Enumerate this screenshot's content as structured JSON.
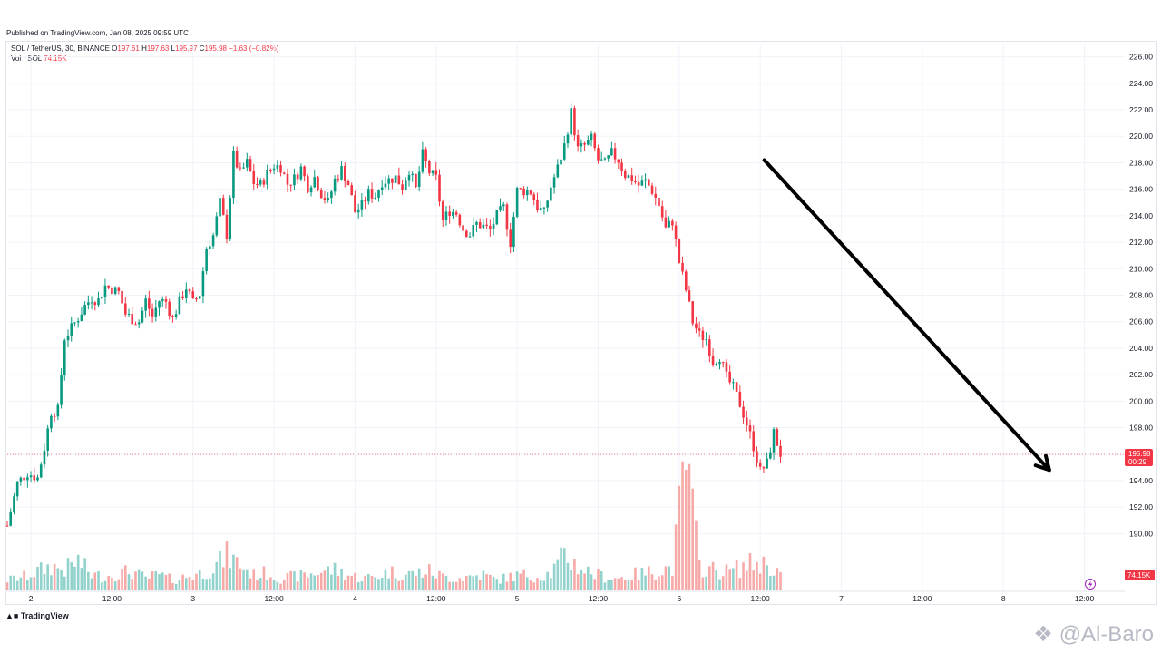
{
  "header": {
    "published": "Published on TradingView.com, Jan 08, 2025 09:59 UTC"
  },
  "legend": {
    "symbol": "SOL / TetherUS, 30, BINANCE",
    "o_label": "O",
    "o_value": "197.61",
    "h_label": "H",
    "h_value": "197.63",
    "l_label": "L",
    "l_value": "195.97",
    "c_label": "C",
    "c_value": "195.98",
    "change": "−1.63 (−0.82%)",
    "vol_label": "Vol · SOL",
    "vol_value": "74.15K"
  },
  "price_tag": {
    "price": "195.98",
    "countdown": "00:29"
  },
  "vol_tag": {
    "value": "74.15K"
  },
  "footer": {
    "brand": "TradingView"
  },
  "watermark": {
    "text": "@Al-Baro"
  },
  "colors": {
    "up": "#089981",
    "down": "#f23645",
    "up_vol": "#92d2cc",
    "down_vol": "#f7a9a7",
    "arrow": "#000000"
  },
  "chart_data": {
    "type": "candlestick",
    "symbol": "SOL / TetherUS",
    "interval": "30",
    "ylim": [
      189,
      227
    ],
    "y_ticks": [
      190,
      192,
      194,
      196,
      198,
      200,
      202,
      204,
      206,
      208,
      210,
      212,
      214,
      216,
      218,
      220,
      222,
      224,
      226
    ],
    "y_tick_labels": [
      "190.00",
      "192.00",
      "194.00",
      "196.00",
      "198.00",
      "200.00",
      "202.00",
      "204.00",
      "206.00",
      "208.00",
      "210.00",
      "212.00",
      "214.00",
      "216.00",
      "218.00",
      "220.00",
      "222.00",
      "224.00",
      "226.00"
    ],
    "x_ticks": [
      {
        "label": "2",
        "hours": 16
      },
      {
        "label": "12:00",
        "hours": 28
      },
      {
        "label": "3",
        "hours": 40
      },
      {
        "label": "12:00",
        "hours": 52
      },
      {
        "label": "4",
        "hours": 64
      },
      {
        "label": "12:00",
        "hours": 76
      },
      {
        "label": "5",
        "hours": 88
      },
      {
        "label": "12:00",
        "hours": 100
      },
      {
        "label": "6",
        "hours": 112
      },
      {
        "label": "12:00",
        "hours": 124
      },
      {
        "label": "7",
        "hours": 136
      },
      {
        "label": "12:00",
        "hours": 148
      },
      {
        "label": "8",
        "hours": 160
      },
      {
        "label": "12:00",
        "hours": 172
      }
    ],
    "x_hours_range": [
      12.5,
      173
    ],
    "last_price": 195.98,
    "close_path": [
      [
        12.5,
        190.6
      ],
      [
        14,
        193.8
      ],
      [
        15.5,
        194.6
      ],
      [
        17,
        194.2
      ],
      [
        18,
        196.5
      ],
      [
        19,
        199.2
      ],
      [
        20,
        199.3
      ],
      [
        21,
        204.8
      ],
      [
        22,
        205.5
      ],
      [
        23,
        206.3
      ],
      [
        24,
        207.2
      ],
      [
        25,
        207.8
      ],
      [
        26,
        207.6
      ],
      [
        27,
        208.7
      ],
      [
        28,
        208.5
      ],
      [
        29,
        208.2
      ],
      [
        30,
        206.6
      ],
      [
        31,
        206.2
      ],
      [
        32,
        206.0
      ],
      [
        33,
        207.6
      ],
      [
        34,
        206.4
      ],
      [
        35,
        207.6
      ],
      [
        36,
        207.5
      ],
      [
        37,
        206.2
      ],
      [
        38,
        207.5
      ],
      [
        39,
        208.6
      ],
      [
        40,
        207.4
      ],
      [
        41,
        208.1
      ],
      [
        42,
        211.6
      ],
      [
        43,
        212.5
      ],
      [
        44,
        215.0
      ],
      [
        45,
        212.6
      ],
      [
        46,
        218.5
      ],
      [
        47,
        217.2
      ],
      [
        48,
        218.0
      ],
      [
        49,
        216.5
      ],
      [
        50,
        216.3
      ],
      [
        51,
        217.2
      ],
      [
        52,
        217.8
      ],
      [
        53,
        217.7
      ],
      [
        54,
        216.4
      ],
      [
        55,
        216.8
      ],
      [
        56,
        217.6
      ],
      [
        57,
        216.2
      ],
      [
        58,
        216.9
      ],
      [
        59,
        215.7
      ],
      [
        60,
        215.0
      ],
      [
        61,
        216.7
      ],
      [
        62,
        217.5
      ],
      [
        63,
        216.4
      ],
      [
        64,
        214.3
      ],
      [
        65,
        214.8
      ],
      [
        66,
        215.7
      ],
      [
        67,
        215.5
      ],
      [
        68,
        216.6
      ],
      [
        69,
        216.7
      ],
      [
        70,
        216.9
      ],
      [
        71,
        216.2
      ],
      [
        72,
        217.5
      ],
      [
        73,
        216.0
      ],
      [
        74,
        218.6
      ],
      [
        75,
        217.3
      ],
      [
        76,
        216.8
      ],
      [
        77,
        213.6
      ],
      [
        78,
        214.4
      ],
      [
        79,
        214.2
      ],
      [
        80,
        213.0
      ],
      [
        81,
        212.6
      ],
      [
        82,
        213.4
      ],
      [
        83,
        213.2
      ],
      [
        84,
        212.9
      ],
      [
        85,
        214.0
      ],
      [
        86,
        214.6
      ],
      [
        87,
        212.0
      ],
      [
        88,
        215.9
      ],
      [
        89,
        215.9
      ],
      [
        90,
        215.8
      ],
      [
        91,
        214.7
      ],
      [
        92,
        214.2
      ],
      [
        93,
        216.2
      ],
      [
        94,
        217.6
      ],
      [
        95,
        219.3
      ],
      [
        96,
        221.8
      ],
      [
        97,
        219.0
      ],
      [
        98,
        219.3
      ],
      [
        99,
        219.8
      ],
      [
        100,
        218.2
      ],
      [
        101,
        217.9
      ],
      [
        102,
        218.7
      ],
      [
        103,
        218.2
      ],
      [
        104,
        217.1
      ],
      [
        105,
        216.8
      ],
      [
        106,
        216.3
      ],
      [
        107,
        216.6
      ],
      [
        108,
        215.9
      ],
      [
        109,
        214.8
      ],
      [
        110,
        213.0
      ],
      [
        111,
        213.6
      ],
      [
        112,
        210.5
      ],
      [
        113,
        208.4
      ],
      [
        114,
        206.0
      ],
      [
        115,
        205.0
      ],
      [
        116,
        204.7
      ],
      [
        117,
        203.0
      ],
      [
        118,
        203.4
      ],
      [
        119,
        201.8
      ],
      [
        120,
        201.0
      ],
      [
        121,
        199.8
      ],
      [
        122,
        198.3
      ],
      [
        123,
        196.6
      ],
      [
        124,
        194.7
      ],
      [
        125,
        195.3
      ],
      [
        126,
        197.6
      ],
      [
        127,
        196.0
      ]
    ],
    "volume_path": [
      [
        12.5,
        12
      ],
      [
        15,
        16
      ],
      [
        17,
        22
      ],
      [
        19,
        28
      ],
      [
        21,
        24
      ],
      [
        23,
        34
      ],
      [
        25,
        18
      ],
      [
        27,
        16
      ],
      [
        29,
        20
      ],
      [
        31,
        22
      ],
      [
        33,
        14
      ],
      [
        35,
        18
      ],
      [
        37,
        12
      ],
      [
        39,
        16
      ],
      [
        41,
        20
      ],
      [
        43,
        26
      ],
      [
        45,
        40
      ],
      [
        47,
        30
      ],
      [
        49,
        18
      ],
      [
        51,
        20
      ],
      [
        53,
        14
      ],
      [
        55,
        16
      ],
      [
        57,
        18
      ],
      [
        59,
        22
      ],
      [
        61,
        24
      ],
      [
        63,
        18
      ],
      [
        65,
        14
      ],
      [
        67,
        16
      ],
      [
        69,
        22
      ],
      [
        71,
        18
      ],
      [
        73,
        20
      ],
      [
        75,
        22
      ],
      [
        77,
        16
      ],
      [
        79,
        14
      ],
      [
        81,
        16
      ],
      [
        83,
        18
      ],
      [
        85,
        12
      ],
      [
        87,
        16
      ],
      [
        89,
        18
      ],
      [
        91,
        16
      ],
      [
        93,
        20
      ],
      [
        95,
        40
      ],
      [
        97,
        28
      ],
      [
        99,
        20
      ],
      [
        101,
        16
      ],
      [
        103,
        14
      ],
      [
        105,
        18
      ],
      [
        107,
        20
      ],
      [
        109,
        24
      ],
      [
        111,
        26
      ],
      [
        113,
        150
      ],
      [
        115,
        28
      ],
      [
        117,
        24
      ],
      [
        119,
        22
      ],
      [
        121,
        26
      ],
      [
        123,
        32
      ],
      [
        125,
        30
      ],
      [
        127,
        20
      ]
    ],
    "annotations": [
      {
        "type": "arrow",
        "from": {
          "hours": 124.6,
          "price": 218.2
        },
        "to": {
          "hours": 166.8,
          "price": 194.8
        }
      }
    ]
  }
}
